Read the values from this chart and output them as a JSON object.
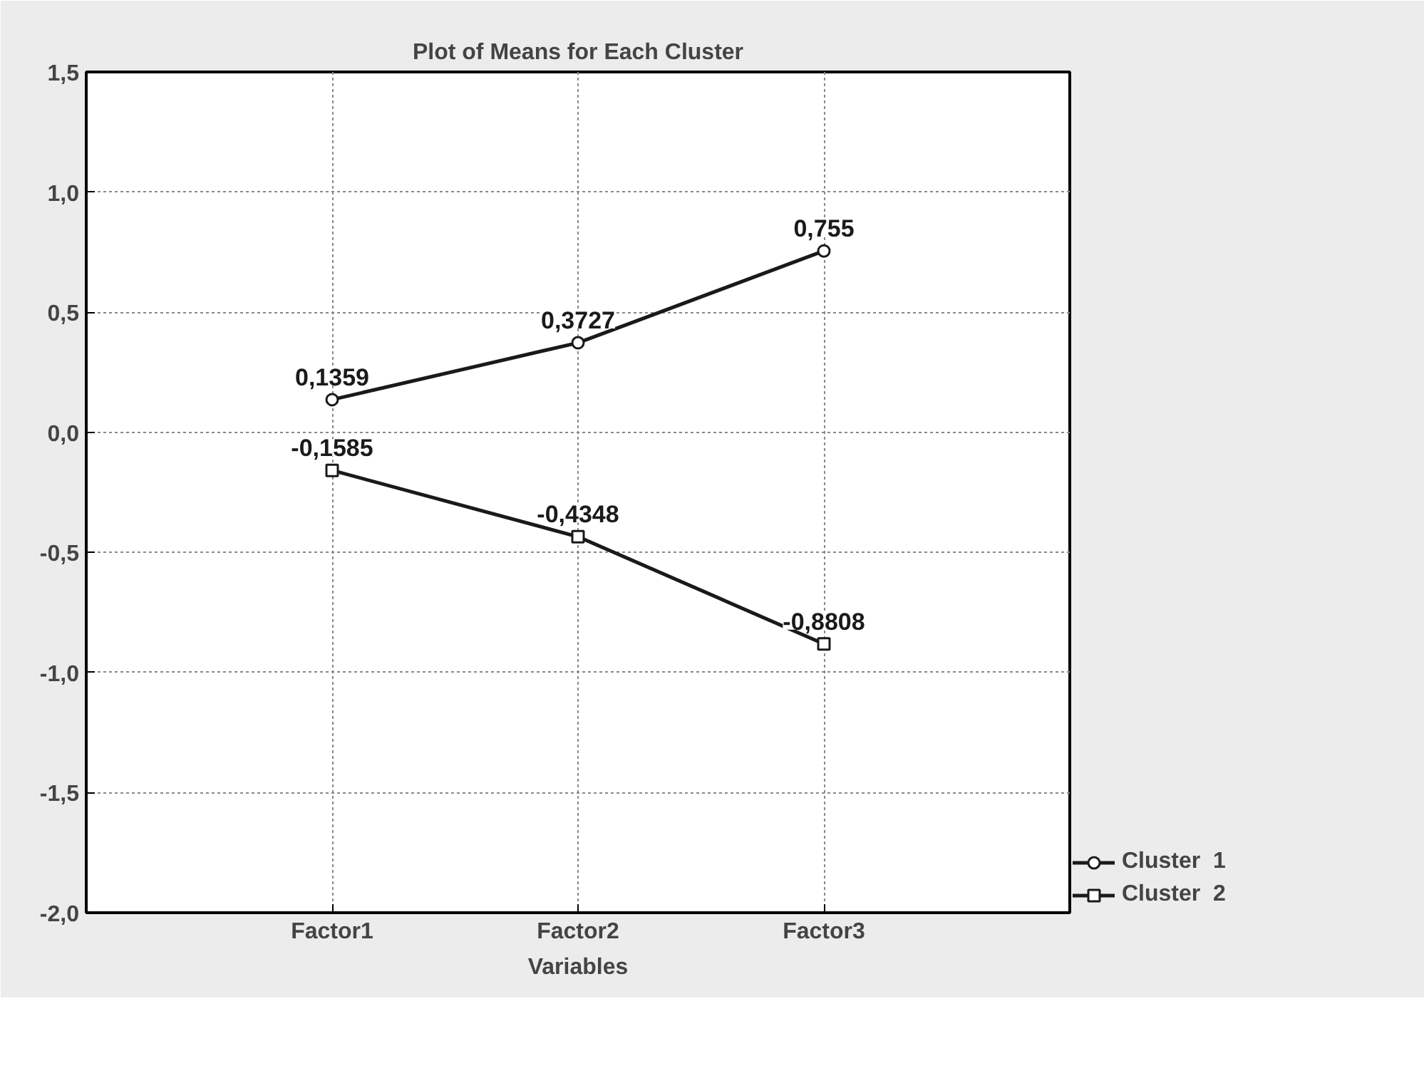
{
  "chart_data": {
    "type": "line",
    "title": "Plot of Means for Each Cluster",
    "xlabel": "Variables",
    "categories": [
      "Factor1",
      "Factor2",
      "Factor3"
    ],
    "series": [
      {
        "name": "Cluster  1",
        "color": "#1a1a1a",
        "marker": "circle",
        "values": [
          0.1359,
          0.3727,
          0.755
        ],
        "value_labels": [
          "0,1359",
          "0,3727",
          "0,755"
        ]
      },
      {
        "name": "Cluster  2",
        "color": "#1a1a1a",
        "marker": "square",
        "values": [
          -0.1585,
          -0.4348,
          -0.8808
        ],
        "value_labels": [
          "-0,1585",
          "-0,4348",
          "-0,8808"
        ]
      }
    ],
    "ylim": [
      -2.0,
      1.5
    ],
    "yticks": [
      {
        "value": -2.0,
        "label": "-2,0"
      },
      {
        "value": -1.5,
        "label": "-1,5"
      },
      {
        "value": -1.0,
        "label": "-1,0"
      },
      {
        "value": -0.5,
        "label": "-0,5"
      },
      {
        "value": 0.0,
        "label": "0,0"
      },
      {
        "value": 0.5,
        "label": "0,5"
      },
      {
        "value": 1.0,
        "label": "1,0"
      },
      {
        "value": 1.5,
        "label": "1,5"
      }
    ],
    "grid": true,
    "legend": "bottom right",
    "line_style": "solid"
  }
}
